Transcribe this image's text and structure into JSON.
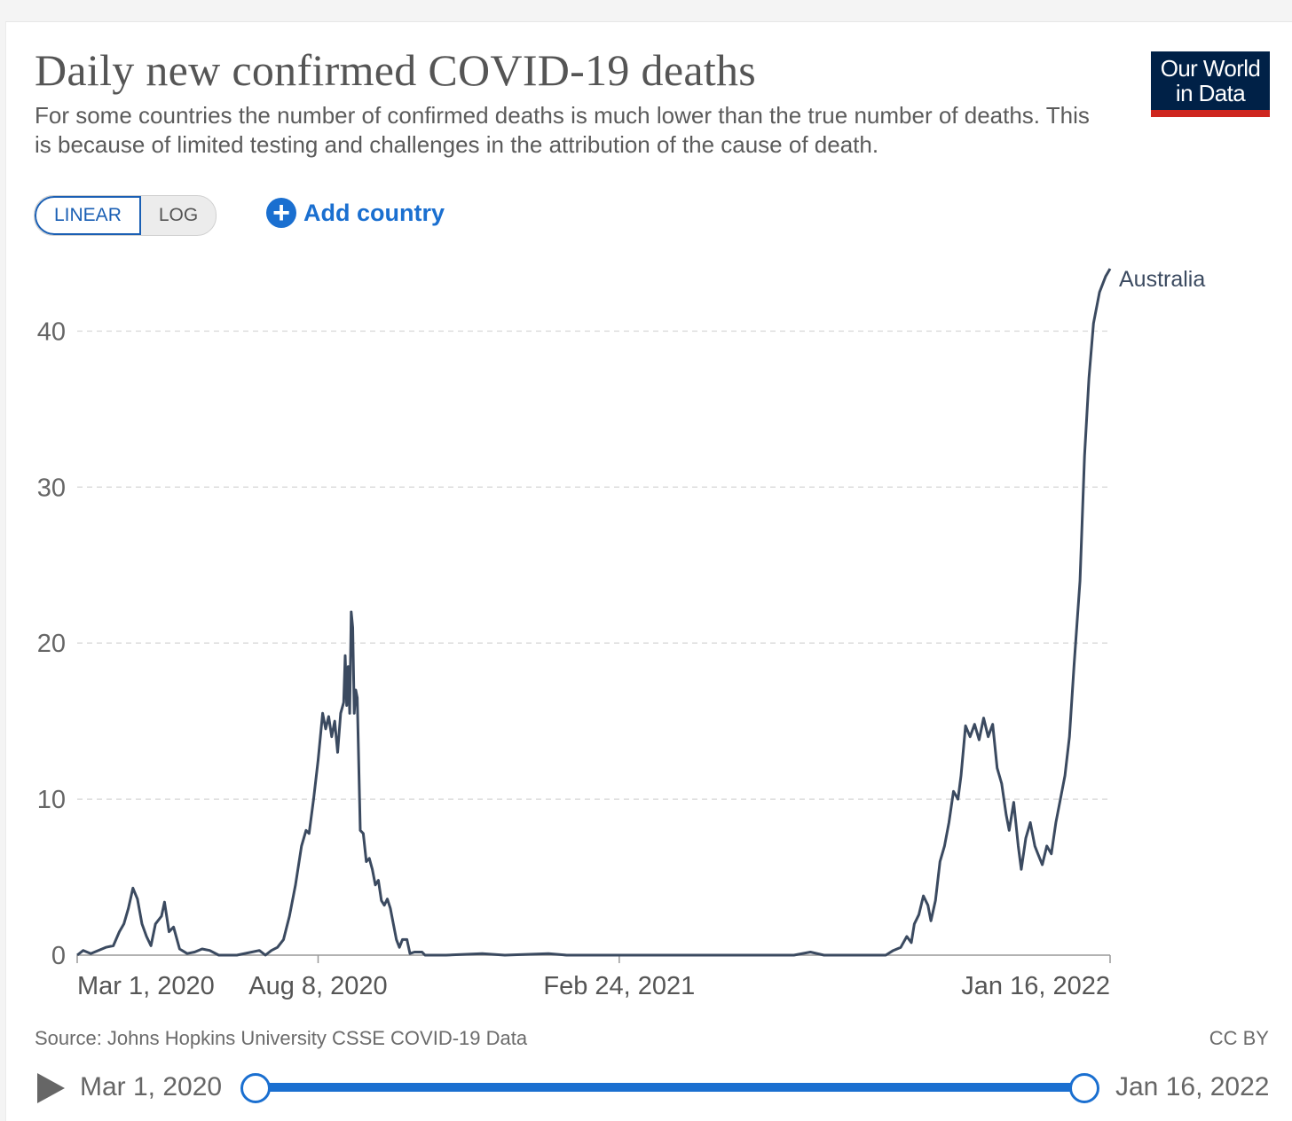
{
  "header": {
    "title": "Daily new confirmed COVID-19 deaths",
    "subtitle": "For some countries the number of confirmed deaths is much lower than the true number of deaths. This is because of limited testing and challenges in the attribution of the cause of death.",
    "logo_line1": "Our World",
    "logo_line2": "in Data",
    "logo_colors": {
      "background": "#002147",
      "stripe": "#ce261e"
    }
  },
  "controls": {
    "linear_label": "LINEAR",
    "log_label": "LOG",
    "active_scale": "LINEAR",
    "add_country_label": "Add country",
    "accent": "#1a6fd0"
  },
  "footer": {
    "source": "Source: Johns Hopkins University CSSE COVID-19 Data",
    "license": "CC BY"
  },
  "timeline": {
    "start_label": "Mar 1, 2020",
    "end_label": "Jan 16, 2022",
    "play_icon": "play-icon"
  },
  "chart_data": {
    "type": "line",
    "title": "Daily new confirmed COVID-19 deaths",
    "xlabel": "",
    "ylabel": "",
    "x_range": [
      "2020-03-01",
      "2022-01-16"
    ],
    "ylim": [
      0,
      44
    ],
    "y_ticks": [
      0,
      10,
      20,
      30,
      40
    ],
    "y_tick_labels": [
      "0",
      "10",
      "20",
      "30",
      "40"
    ],
    "x_ticks": [
      "2020-03-01",
      "2020-08-08",
      "2021-02-24",
      "2022-01-16"
    ],
    "x_tick_labels": [
      "Mar 1, 2020",
      "Aug 8, 2020",
      "Feb 24, 2021",
      "Jan 16, 2022"
    ],
    "grid": "horizontal dashed",
    "line_color": "#3b4a60",
    "series": [
      {
        "name": "Australia",
        "points": [
          [
            "2020-03-01",
            0
          ],
          [
            "2020-03-05",
            0.3
          ],
          [
            "2020-03-10",
            0.1
          ],
          [
            "2020-03-15",
            0.3
          ],
          [
            "2020-03-20",
            0.5
          ],
          [
            "2020-03-25",
            0.6
          ],
          [
            "2020-03-29",
            1.5
          ],
          [
            "2020-04-01",
            2.0
          ],
          [
            "2020-04-04",
            3.0
          ],
          [
            "2020-04-07",
            4.3
          ],
          [
            "2020-04-10",
            3.6
          ],
          [
            "2020-04-13",
            2.0
          ],
          [
            "2020-04-16",
            1.2
          ],
          [
            "2020-04-19",
            0.6
          ],
          [
            "2020-04-22",
            2.0
          ],
          [
            "2020-04-26",
            2.5
          ],
          [
            "2020-04-28",
            3.4
          ],
          [
            "2020-05-01",
            1.5
          ],
          [
            "2020-05-04",
            1.8
          ],
          [
            "2020-05-08",
            0.4
          ],
          [
            "2020-05-13",
            0.1
          ],
          [
            "2020-05-18",
            0.2
          ],
          [
            "2020-05-23",
            0.4
          ],
          [
            "2020-05-28",
            0.3
          ],
          [
            "2020-06-03",
            0
          ],
          [
            "2020-06-15",
            0
          ],
          [
            "2020-06-25",
            0.2
          ],
          [
            "2020-06-30",
            0.3
          ],
          [
            "2020-07-04",
            0
          ],
          [
            "2020-07-08",
            0.3
          ],
          [
            "2020-07-12",
            0.5
          ],
          [
            "2020-07-16",
            1.0
          ],
          [
            "2020-07-20",
            2.5
          ],
          [
            "2020-07-24",
            4.5
          ],
          [
            "2020-07-28",
            7.0
          ],
          [
            "2020-07-31",
            8.0
          ],
          [
            "2020-08-02",
            7.8
          ],
          [
            "2020-08-05",
            10.0
          ],
          [
            "2020-08-08",
            12.5
          ],
          [
            "2020-08-11",
            15.5
          ],
          [
            "2020-08-13",
            14.5
          ],
          [
            "2020-08-15",
            15.3
          ],
          [
            "2020-08-17",
            14.0
          ],
          [
            "2020-08-19",
            15.0
          ],
          [
            "2020-08-21",
            13.0
          ],
          [
            "2020-08-23",
            15.5
          ],
          [
            "2020-08-25",
            16.2
          ],
          [
            "2020-08-26",
            19.2
          ],
          [
            "2020-08-27",
            16.0
          ],
          [
            "2020-08-28",
            18.5
          ],
          [
            "2020-08-29",
            15.5
          ],
          [
            "2020-08-30",
            22.0
          ],
          [
            "2020-08-31",
            21.0
          ],
          [
            "2020-09-01",
            15.5
          ],
          [
            "2020-09-02",
            17.0
          ],
          [
            "2020-09-03",
            16.5
          ],
          [
            "2020-09-05",
            8.0
          ],
          [
            "2020-09-07",
            7.8
          ],
          [
            "2020-09-09",
            6.0
          ],
          [
            "2020-09-11",
            6.2
          ],
          [
            "2020-09-13",
            5.5
          ],
          [
            "2020-09-15",
            4.5
          ],
          [
            "2020-09-17",
            4.8
          ],
          [
            "2020-09-19",
            3.5
          ],
          [
            "2020-09-21",
            3.2
          ],
          [
            "2020-09-23",
            3.6
          ],
          [
            "2020-09-25",
            3.0
          ],
          [
            "2020-09-27",
            2.0
          ],
          [
            "2020-09-29",
            1.0
          ],
          [
            "2020-10-01",
            0.5
          ],
          [
            "2020-10-03",
            1.0
          ],
          [
            "2020-10-06",
            1.0
          ],
          [
            "2020-10-08",
            0.1
          ],
          [
            "2020-10-11",
            0.2
          ],
          [
            "2020-10-16",
            0.2
          ],
          [
            "2020-10-18",
            0
          ],
          [
            "2020-11-01",
            0
          ],
          [
            "2020-11-25",
            0.1
          ],
          [
            "2020-12-10",
            0
          ],
          [
            "2021-01-08",
            0.1
          ],
          [
            "2021-01-20",
            0
          ],
          [
            "2021-06-20",
            0
          ],
          [
            "2021-07-01",
            0.2
          ],
          [
            "2021-07-10",
            0
          ],
          [
            "2021-08-20",
            0
          ],
          [
            "2021-08-25",
            0.3
          ],
          [
            "2021-08-30",
            0.5
          ],
          [
            "2021-09-03",
            1.2
          ],
          [
            "2021-09-06",
            0.8
          ],
          [
            "2021-09-08",
            2.0
          ],
          [
            "2021-09-11",
            2.6
          ],
          [
            "2021-09-14",
            3.8
          ],
          [
            "2021-09-17",
            3.2
          ],
          [
            "2021-09-19",
            2.2
          ],
          [
            "2021-09-22",
            3.5
          ],
          [
            "2021-09-25",
            6.0
          ],
          [
            "2021-09-28",
            7.0
          ],
          [
            "2021-10-01",
            8.5
          ],
          [
            "2021-10-04",
            10.5
          ],
          [
            "2021-10-07",
            10.0
          ],
          [
            "2021-10-09",
            11.5
          ],
          [
            "2021-10-12",
            14.7
          ],
          [
            "2021-10-15",
            14.0
          ],
          [
            "2021-10-18",
            14.8
          ],
          [
            "2021-10-21",
            13.8
          ],
          [
            "2021-10-24",
            15.2
          ],
          [
            "2021-10-27",
            14.0
          ],
          [
            "2021-10-30",
            14.8
          ],
          [
            "2021-11-02",
            12.0
          ],
          [
            "2021-11-05",
            11.0
          ],
          [
            "2021-11-08",
            9.0
          ],
          [
            "2021-11-10",
            8.0
          ],
          [
            "2021-11-13",
            9.8
          ],
          [
            "2021-11-16",
            7.0
          ],
          [
            "2021-11-18",
            5.5
          ],
          [
            "2021-11-21",
            7.5
          ],
          [
            "2021-11-24",
            8.5
          ],
          [
            "2021-11-27",
            7.0
          ],
          [
            "2021-11-29",
            6.5
          ],
          [
            "2021-12-02",
            5.8
          ],
          [
            "2021-12-05",
            7.0
          ],
          [
            "2021-12-08",
            6.5
          ],
          [
            "2021-12-11",
            8.5
          ],
          [
            "2021-12-14",
            10.0
          ],
          [
            "2021-12-17",
            11.5
          ],
          [
            "2021-12-20",
            14.0
          ],
          [
            "2021-12-23",
            18.5
          ],
          [
            "2021-12-27",
            24.0
          ],
          [
            "2021-12-30",
            32.0
          ],
          [
            "2022-01-02",
            37.0
          ],
          [
            "2022-01-05",
            40.5
          ],
          [
            "2022-01-09",
            42.5
          ],
          [
            "2022-01-13",
            43.5
          ],
          [
            "2022-01-16",
            44.0
          ]
        ]
      }
    ]
  }
}
